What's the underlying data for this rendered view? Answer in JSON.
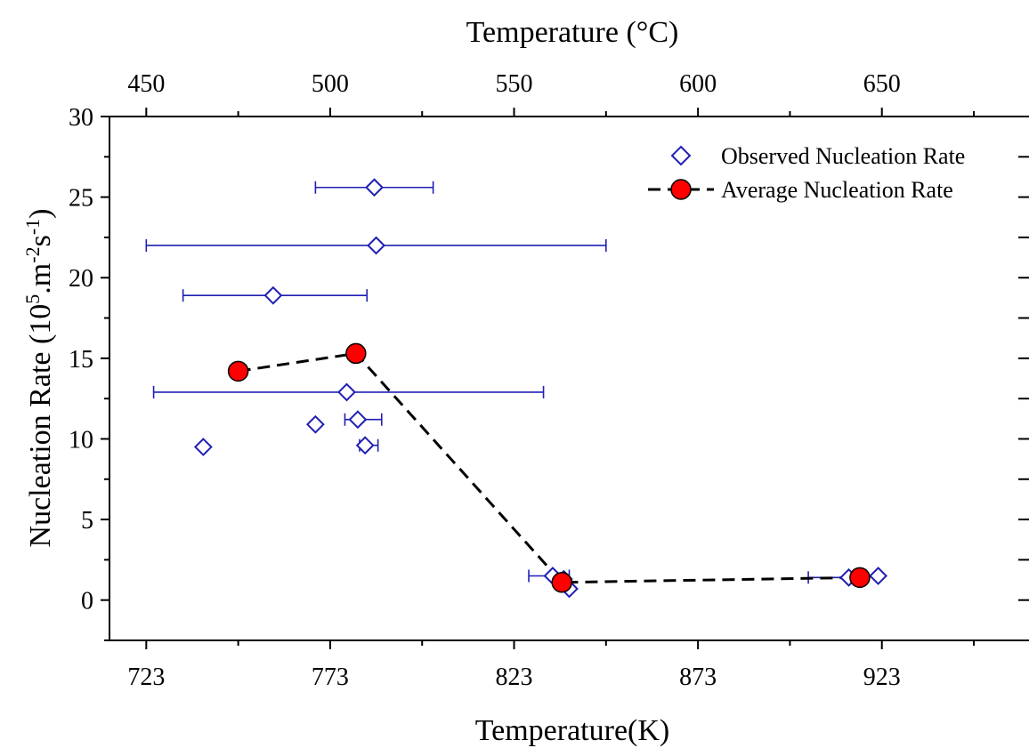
{
  "chart_data": {
    "type": "scatter",
    "xlabel_bottom": "Temperature",
    "xlabel_bottom_unit": "(K)",
    "xlabel_top": "Temperature",
    "xlabel_top_unit": "(°C)",
    "ylabel": "Nucleation Rate",
    "ylabel_unit": "(10^5.m^-2s^-1)",
    "xlim": [
      713,
      963
    ],
    "ylim": [
      -2.5,
      30
    ],
    "x_ticks_bottom": [
      723,
      773,
      823,
      873,
      923
    ],
    "x_ticks_top": [
      450,
      500,
      550,
      600,
      650
    ],
    "y_ticks": [
      0,
      5,
      10,
      15,
      20,
      25,
      30
    ],
    "legend_position": "top-right",
    "series": [
      {
        "name": "Observed Nucleation Rate",
        "marker": "diamond",
        "color": "#1f1fb4",
        "points": [
          {
            "x": 785,
            "y": 25.6,
            "xerr": [
              769,
              801
            ]
          },
          {
            "x": 785.5,
            "y": 22.0,
            "xerr": [
              723,
              848
            ]
          },
          {
            "x": 757.5,
            "y": 18.9,
            "xerr": [
              733,
              783
            ]
          },
          {
            "x": 777.5,
            "y": 12.9,
            "xerr": [
              725,
              831
            ]
          },
          {
            "x": 779.5,
            "y": 15.2
          },
          {
            "x": 769,
            "y": 10.9
          },
          {
            "x": 780.5,
            "y": 11.2,
            "xerr": [
              777,
              787
            ]
          },
          {
            "x": 782.5,
            "y": 9.6,
            "xerr": [
              781,
              786
            ]
          },
          {
            "x": 738.5,
            "y": 9.5
          },
          {
            "x": 833.5,
            "y": 1.5,
            "xerr": [
              827,
              838
            ]
          },
          {
            "x": 838,
            "y": 0.7
          },
          {
            "x": 836.5,
            "y": 1.3
          },
          {
            "x": 914,
            "y": 1.4,
            "xerr": [
              903,
              919
            ]
          },
          {
            "x": 922,
            "y": 1.5
          }
        ]
      },
      {
        "name": "Average Nucleation Rate",
        "marker": "circle",
        "color": "#ff0000",
        "line": "dashed",
        "points": [
          {
            "x": 748,
            "y": 14.2
          },
          {
            "x": 780,
            "y": 15.3
          },
          {
            "x": 836,
            "y": 1.1
          },
          {
            "x": 917,
            "y": 1.4
          }
        ]
      }
    ]
  }
}
